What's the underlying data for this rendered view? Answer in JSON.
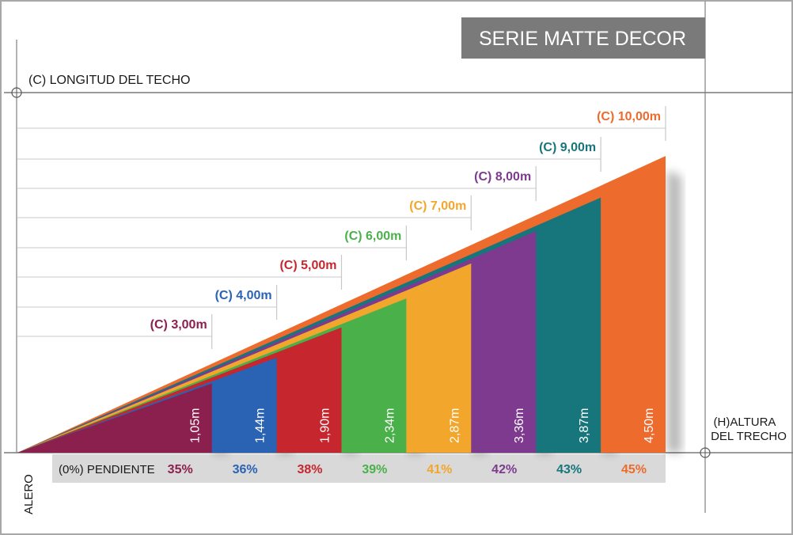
{
  "series_title": "SERIE MATTE DECOR",
  "axis_labels": {
    "roof_length": "(C) LONGITUD DEL TECHO",
    "height_line1": "(H)ALTURA",
    "height_line2": "DEL TRECHO",
    "eave": "ALERO",
    "slope": "(0%) PENDIENTE"
  },
  "colors": {
    "title_bg": "#7a7a7a",
    "slope_band": "#d9d9d9",
    "guide_lines": "#c8c8c8",
    "frame": "#9a9a9a"
  },
  "roofs": [
    {
      "length_label": "(C) 3,00m",
      "length_m": 3.0,
      "height_label": "1,05m",
      "height_m": 1.05,
      "slope_label": "35%",
      "slope_pct": 35,
      "color": "#8b1f4e"
    },
    {
      "length_label": "(C) 4,00m",
      "length_m": 4.0,
      "height_label": "1,44m",
      "height_m": 1.44,
      "slope_label": "36%",
      "slope_pct": 36,
      "color": "#2a63b4"
    },
    {
      "length_label": "(C) 5,00m",
      "length_m": 5.0,
      "height_label": "1,90m",
      "height_m": 1.9,
      "slope_label": "38%",
      "slope_pct": 38,
      "color": "#c6272f"
    },
    {
      "length_label": "(C) 6,00m",
      "length_m": 6.0,
      "height_label": "2,34m",
      "height_m": 2.34,
      "slope_label": "39%",
      "slope_pct": 39,
      "color": "#4ab14a"
    },
    {
      "length_label": "(C) 7,00m",
      "length_m": 7.0,
      "height_label": "2,87m",
      "height_m": 2.87,
      "slope_label": "41%",
      "slope_pct": 41,
      "color": "#f2a72c"
    },
    {
      "length_label": "(C) 8,00m",
      "length_m": 8.0,
      "height_label": "3,36m",
      "height_m": 3.36,
      "slope_label": "42%",
      "slope_pct": 42,
      "color": "#7e3a8e"
    },
    {
      "length_label": "(C) 9,00m",
      "length_m": 9.0,
      "height_label": "3,87m",
      "height_m": 3.87,
      "slope_label": "43%",
      "slope_pct": 43,
      "color": "#17767c"
    },
    {
      "length_label": "(C) 10,00m",
      "length_m": 10.0,
      "height_label": "4,50m",
      "height_m": 4.5,
      "slope_label": "45%",
      "slope_pct": 45,
      "color": "#ec6b2d"
    }
  ]
}
